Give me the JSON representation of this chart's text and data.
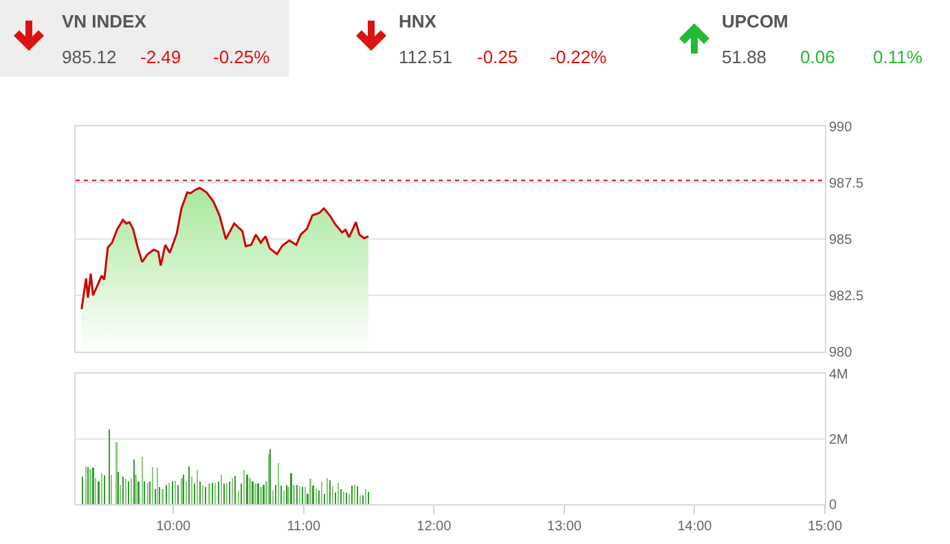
{
  "chart_data": [
    {
      "type": "other",
      "categories": [
        "VN INDEX",
        "HNX",
        "UPCOM"
      ],
      "series": [
        {
          "values": [
            985.12,
            112.51,
            51.88
          ],
          "value_labels": [
            "985.12",
            "112.51",
            "51.88"
          ]
        },
        {
          "values": [
            -2.49,
            -0.25,
            0.06
          ],
          "value_labels": [
            "-2.49",
            "-0.25",
            "0.06"
          ]
        },
        {
          "values": [
            -0.25,
            -0.22,
            0.11
          ],
          "value_labels": [
            "-0.25%",
            "-0.22%",
            "0.11%"
          ]
        }
      ]
    },
    {
      "type": "area",
      "xlim": [
        9.25,
        15
      ],
      "ylim": [
        980,
        990
      ],
      "yticks": [
        980,
        982.5,
        985,
        987.5,
        990
      ],
      "grid": "y",
      "tick_labels": "y",
      "x": [
        9.296,
        9.33,
        9.345,
        9.366,
        9.384,
        9.45,
        9.47,
        9.497,
        9.53,
        9.567,
        9.613,
        9.638,
        9.663,
        9.691,
        9.726,
        9.761,
        9.803,
        9.85,
        9.885,
        9.903,
        9.938,
        9.973,
        10.026,
        10.062,
        10.107,
        10.131,
        10.167,
        10.202,
        10.255,
        10.308,
        10.354,
        10.403,
        10.467,
        10.53,
        10.555,
        10.597,
        10.633,
        10.671,
        10.707,
        10.739,
        10.795,
        10.837,
        10.89,
        10.943,
        10.978,
        11.025,
        11.067,
        11.12,
        11.155,
        11.2,
        11.243,
        11.295,
        11.321,
        11.349,
        11.401,
        11.427,
        11.462,
        11.497
      ],
      "series": [
        {
          "color": "#cc0000",
          "values": [
            981.89,
            983.25,
            982.4,
            983.46,
            982.5,
            983.37,
            983.2,
            984.63,
            984.84,
            985.41,
            985.85,
            985.69,
            985.75,
            985.45,
            984.63,
            983.98,
            984.33,
            984.53,
            984.43,
            983.82,
            984.74,
            984.39,
            985.24,
            986.36,
            987.07,
            987.03,
            987.18,
            987.27,
            987.07,
            986.66,
            986.05,
            985.0,
            985.69,
            985.35,
            984.68,
            984.74,
            985.2,
            984.84,
            985.12,
            984.59,
            984.33,
            984.71,
            984.94,
            984.74,
            985.2,
            985.45,
            986.05,
            986.16,
            986.36,
            986.05,
            985.65,
            985.29,
            985.41,
            985.08,
            985.75,
            985.2,
            985.04,
            985.12
          ]
        }
      ],
      "ref_lines": [
        {
          "axis": "y",
          "value": 987.6,
          "color": "#e03030",
          "line_style": "dotted"
        }
      ]
    },
    {
      "type": "bar",
      "xlim": [
        9.25,
        15
      ],
      "xticks": [
        {
          "value": 10,
          "label": "10:00"
        },
        {
          "value": 11,
          "label": "11:00"
        },
        {
          "value": 12,
          "label": "12:00"
        },
        {
          "value": 13,
          "label": "13:00"
        },
        {
          "value": 14,
          "label": "14:00"
        },
        {
          "value": 15,
          "label": "15:00"
        }
      ],
      "ylim": [
        0,
        4
      ],
      "yticks": [
        0,
        {
          "value": 2,
          "label": "2M"
        },
        {
          "value": 4,
          "label": "4M"
        }
      ],
      "grid": "y",
      "x": [
        9.303,
        9.328,
        9.345,
        9.363,
        9.384,
        9.402,
        9.426,
        9.451,
        9.472,
        9.507,
        9.525,
        9.564,
        9.578,
        9.592,
        9.613,
        9.634,
        9.656,
        9.677,
        9.698,
        9.712,
        9.733,
        9.761,
        9.779,
        9.804,
        9.818,
        9.839,
        9.86,
        9.878,
        9.895,
        9.917,
        9.945,
        9.966,
        9.994,
        10.015,
        10.037,
        10.065,
        10.079,
        10.1,
        10.121,
        10.142,
        10.163,
        10.185,
        10.206,
        10.227,
        10.248,
        10.276,
        10.298,
        10.319,
        10.347,
        10.368,
        10.389,
        10.41,
        10.432,
        10.453,
        10.474,
        10.502,
        10.523,
        10.544,
        10.566,
        10.587,
        10.608,
        10.629,
        10.65,
        10.671,
        10.693,
        10.714,
        10.735,
        10.742,
        10.763,
        10.784,
        10.805,
        10.827,
        10.848,
        10.869,
        10.883,
        10.904,
        10.925,
        10.947,
        10.968,
        10.989,
        11.01,
        11.031,
        11.052,
        11.073,
        11.095,
        11.116,
        11.137,
        11.158,
        11.179,
        11.2,
        11.222,
        11.243,
        11.264,
        11.285,
        11.306,
        11.327,
        11.349,
        11.37,
        11.391,
        11.412,
        11.433,
        11.455,
        11.476,
        11.497
      ],
      "values": [
        0.84,
        1.16,
        1.14,
        1.08,
        1.11,
        0.8,
        0.7,
        0.94,
        0.88,
        2.29,
        0.91,
        1.89,
        0.98,
        0.6,
        0.84,
        0.77,
        0.7,
        0.8,
        1.36,
        0.91,
        0.7,
        1.45,
        0.7,
        0.66,
        0.69,
        1.14,
        0.46,
        1.11,
        0.52,
        0.46,
        0.6,
        0.66,
        0.69,
        0.72,
        0.6,
        0.8,
        0.91,
        0.7,
        1.16,
        0.84,
        0.63,
        1.05,
        0.7,
        0.56,
        0.52,
        0.63,
        0.66,
        0.66,
        0.69,
        0.91,
        0.63,
        0.66,
        0.7,
        0.8,
        0.87,
        0.42,
        0.63,
        1.05,
        0.91,
        0.8,
        0.7,
        0.63,
        0.63,
        0.52,
        0.6,
        0.7,
        1.54,
        1.68,
        0.42,
        0.6,
        1.26,
        0.56,
        0.42,
        0.6,
        0.52,
        0.94,
        0.6,
        0.6,
        0.55,
        0.52,
        0.52,
        0.31,
        0.77,
        0.56,
        0.49,
        0.42,
        0.7,
        0.32,
        0.8,
        0.74,
        0.55,
        0.35,
        0.66,
        0.46,
        0.38,
        0.35,
        0.32,
        0.56,
        0.6,
        0.55,
        0.28,
        0.28,
        0.46,
        0.38
      ],
      "colors": [
        "#339933",
        "#8acc7a",
        "#339933",
        "#8acc7a",
        "#339933",
        "#8acc7a",
        "#339933",
        "#8acc7a",
        "#339933",
        "#339933",
        "#8acc7a",
        "#8acc7a",
        "#339933",
        "#8acc7a",
        "#339933",
        "#8acc7a",
        "#339933",
        "#8acc7a",
        "#339933",
        "#8acc7a",
        "#339933",
        "#8acc7a",
        "#339933",
        "#8acc7a",
        "#339933",
        "#8acc7a",
        "#339933",
        "#8acc7a",
        "#339933",
        "#8acc7a",
        "#339933",
        "#8acc7a",
        "#339933",
        "#8acc7a",
        "#339933",
        "#8acc7a",
        "#339933",
        "#8acc7a",
        "#339933",
        "#8acc7a",
        "#339933",
        "#8acc7a",
        "#339933",
        "#8acc7a",
        "#339933",
        "#8acc7a",
        "#339933",
        "#8acc7a",
        "#339933",
        "#8acc7a",
        "#339933",
        "#8acc7a",
        "#339933",
        "#8acc7a",
        "#339933",
        "#8acc7a",
        "#339933",
        "#8acc7a",
        "#339933",
        "#8acc7a",
        "#339933",
        "#8acc7a",
        "#339933",
        "#8acc7a",
        "#339933",
        "#8acc7a",
        "#8acc7a",
        "#339933",
        "#8acc7a",
        "#339933",
        "#8acc7a",
        "#339933",
        "#8acc7a",
        "#339933",
        "#8acc7a",
        "#339933",
        "#8acc7a",
        "#339933",
        "#8acc7a",
        "#339933",
        "#8acc7a",
        "#339933",
        "#8acc7a",
        "#339933",
        "#8acc7a",
        "#339933",
        "#8acc7a",
        "#339933",
        "#8acc7a",
        "#339933",
        "#8acc7a",
        "#339933",
        "#8acc7a",
        "#339933",
        "#8acc7a",
        "#339933",
        "#8acc7a",
        "#339933",
        "#8acc7a",
        "#339933",
        "#8acc7a",
        "#339933",
        "#8acc7a",
        "#339933"
      ]
    }
  ]
}
